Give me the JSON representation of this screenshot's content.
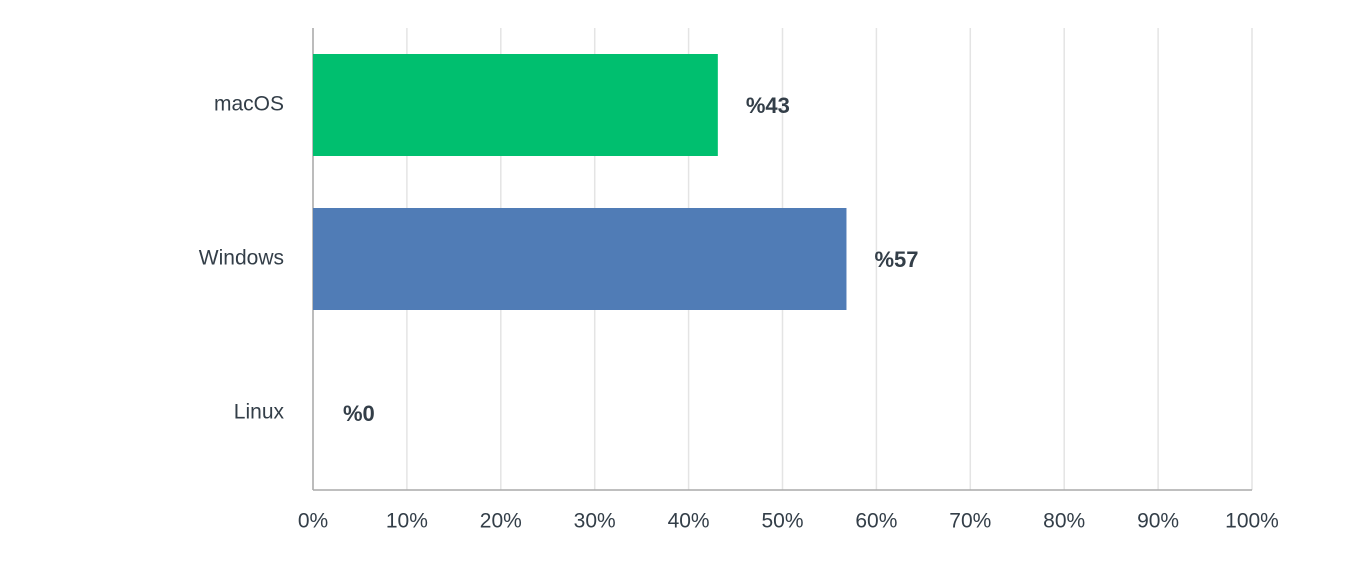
{
  "chart_data": {
    "type": "hbar",
    "categories": [
      "macOS",
      "Windows",
      "Linux"
    ],
    "values": [
      42.9,
      56.6,
      0
    ],
    "value_labels": [
      "%43",
      "%57",
      "%0"
    ],
    "colors": [
      "#00bf6f",
      "#507cb6",
      "#f9be00"
    ],
    "xlim": [
      0,
      100
    ],
    "xticks": [
      {
        "value": 0,
        "label": "0%"
      },
      {
        "value": 10,
        "label": "10%"
      },
      {
        "value": 20,
        "label": "20%"
      },
      {
        "value": 30,
        "label": "30%"
      },
      {
        "value": 40,
        "label": "40%"
      },
      {
        "value": 50,
        "label": "50%"
      },
      {
        "value": 60,
        "label": "60%"
      },
      {
        "value": 70,
        "label": "70%"
      },
      {
        "value": 80,
        "label": "80%"
      },
      {
        "value": 90,
        "label": "90%"
      },
      {
        "value": 100,
        "label": "100%"
      }
    ],
    "grid": true
  }
}
